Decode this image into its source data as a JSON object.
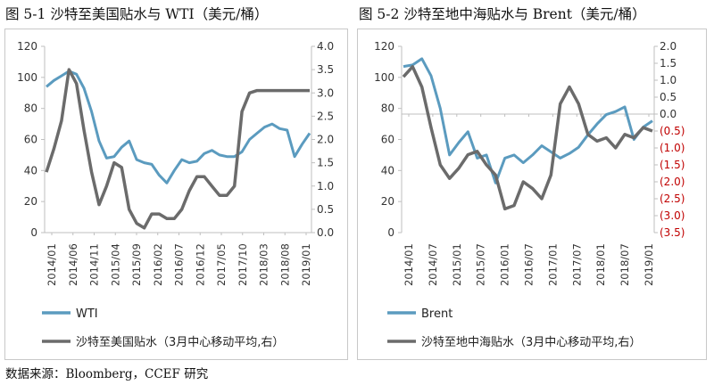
{
  "panels": [
    {
      "title": "图 5-1  沙特至美国贴水与 WTI（美元/桶）",
      "chart_data": {
        "type": "line",
        "x_tick_labels": [
          "2014/01",
          "2014/06",
          "2014/11",
          "2015/04",
          "2015/09",
          "2016/02",
          "2016/07",
          "2016/12",
          "2017/05",
          "2017/10",
          "2018/03",
          "2018/08",
          "2019/01"
        ],
        "left_axis": {
          "ylim": [
            0,
            120
          ],
          "ticks": [
            "0",
            "20",
            "40",
            "60",
            "80",
            "100",
            "120"
          ]
        },
        "right_axis": {
          "ylim": [
            0,
            4.0
          ],
          "ticks": [
            "0.0",
            "0.5",
            "1.0",
            "1.5",
            "2.0",
            "2.5",
            "3.0",
            "3.5",
            "4.0"
          ]
        },
        "grid": false,
        "legend_position": "bottom",
        "series": [
          {
            "name": "WTI",
            "axis": "left",
            "color": "#5b9bbf",
            "values": [
              94,
              98,
              101,
              104,
              102,
              93,
              78,
              59,
              48,
              49,
              55,
              59,
              47,
              45,
              44,
              37,
              32,
              40,
              47,
              45,
              46,
              51,
              53,
              50,
              49,
              49,
              52,
              60,
              64,
              68,
              70,
              67,
              66,
              49,
              57,
              64
            ]
          },
          {
            "name": "沙特至美国贴水（3月中心移动平均,右）",
            "axis": "right",
            "color": "#6b6b6b",
            "values": [
              1.3,
              1.8,
              2.4,
              3.5,
              3.2,
              2.2,
              1.3,
              0.6,
              1.0,
              1.5,
              1.4,
              0.5,
              0.2,
              0.1,
              0.4,
              0.4,
              0.3,
              0.3,
              0.5,
              0.9,
              1.2,
              1.2,
              1.0,
              0.8,
              0.8,
              1.0,
              2.6,
              3.0,
              3.05,
              3.05,
              3.05,
              3.05,
              3.05,
              3.05,
              3.05,
              3.05
            ]
          }
        ]
      }
    },
    {
      "title": "图 5-2  沙特至地中海贴水与 Brent（美元/桶）",
      "chart_data": {
        "type": "line",
        "x_tick_labels": [
          "2014/01",
          "2014/07",
          "2015/01",
          "2015/07",
          "2016/01",
          "2016/07",
          "2017/01",
          "2017/07",
          "2018/01",
          "2018/07",
          "2019/01"
        ],
        "left_axis": {
          "ylim": [
            0,
            120
          ],
          "ticks": [
            "0",
            "20",
            "40",
            "60",
            "80",
            "100",
            "120"
          ]
        },
        "right_axis": {
          "ylim": [
            -3.5,
            2.0
          ],
          "ticks": [
            "2.0",
            "1.5",
            "1.0",
            "0.5",
            "0.0",
            "(0.5)",
            "(1.0)",
            "(1.5)",
            "(2.0)",
            "(2.5)",
            "(3.0)",
            "(3.5)"
          ],
          "negative_color": "#c00000"
        },
        "grid": false,
        "legend_position": "bottom",
        "series": [
          {
            "name": "Brent",
            "axis": "left",
            "color": "#5b9bbf",
            "values": [
              107,
              108,
              112,
              101,
              80,
              50,
              58,
              65,
              48,
              50,
              32,
              48,
              50,
              45,
              50,
              56,
              52,
              48,
              51,
              55,
              63,
              70,
              76,
              78,
              81,
              60,
              68,
              72
            ]
          },
          {
            "name": "沙特至地中海贴水（3月中心移动平均,右）",
            "axis": "right",
            "color": "#6b6b6b",
            "values": [
              1.1,
              1.4,
              0.8,
              -0.4,
              -1.5,
              -1.9,
              -1.6,
              -1.2,
              -1.1,
              -1.5,
              -1.8,
              -2.8,
              -2.7,
              -2.0,
              -2.2,
              -2.5,
              -1.8,
              0.3,
              0.8,
              0.3,
              -0.6,
              -0.8,
              -0.7,
              -1.0,
              -0.6,
              -0.7,
              -0.4,
              -0.5
            ]
          }
        ]
      }
    }
  ],
  "source": "数据来源：Bloomberg，CCEF 研究"
}
